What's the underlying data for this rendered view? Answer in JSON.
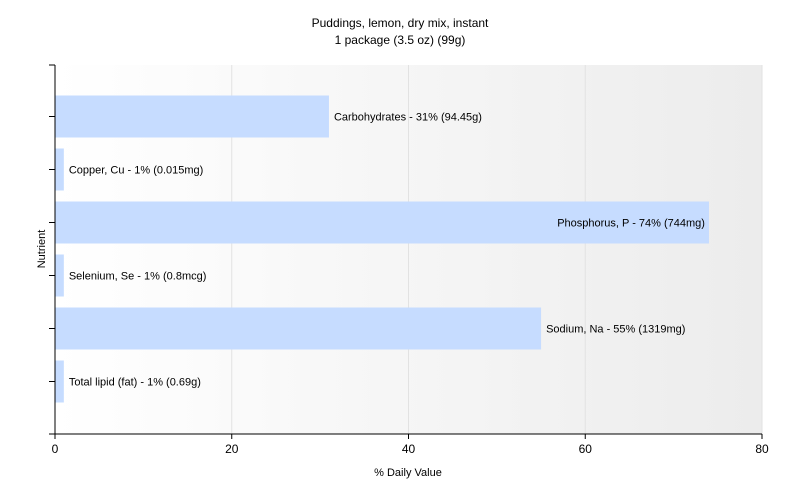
{
  "chart_data": {
    "type": "bar",
    "orientation": "horizontal",
    "title": "Puddings, lemon, dry mix, instant",
    "subtitle": "1 package (3.5 oz) (99g)",
    "xlabel": "% Daily Value",
    "ylabel": "Nutrient",
    "xlim": [
      0,
      80
    ],
    "xticks": [
      0,
      20,
      40,
      60,
      80
    ],
    "grid": true,
    "legend": "none",
    "bar_color": "#c6dcff",
    "categories": [
      "Carbohydrates",
      "Copper, Cu",
      "Phosphorus, P",
      "Selenium, Se",
      "Sodium, Na",
      "Total lipid (fat)"
    ],
    "values": [
      31,
      1,
      74,
      1,
      55,
      1
    ],
    "labels": [
      "Carbohydrates - 31% (94.45g)",
      "Copper, Cu - 1% (0.015mg)",
      "Phosphorus, P - 74% (744mg)",
      "Selenium, Se - 1% (0.8mcg)",
      "Sodium, Na - 55% (1319mg)",
      "Total lipid (fat) - 1% (0.69g)"
    ]
  }
}
